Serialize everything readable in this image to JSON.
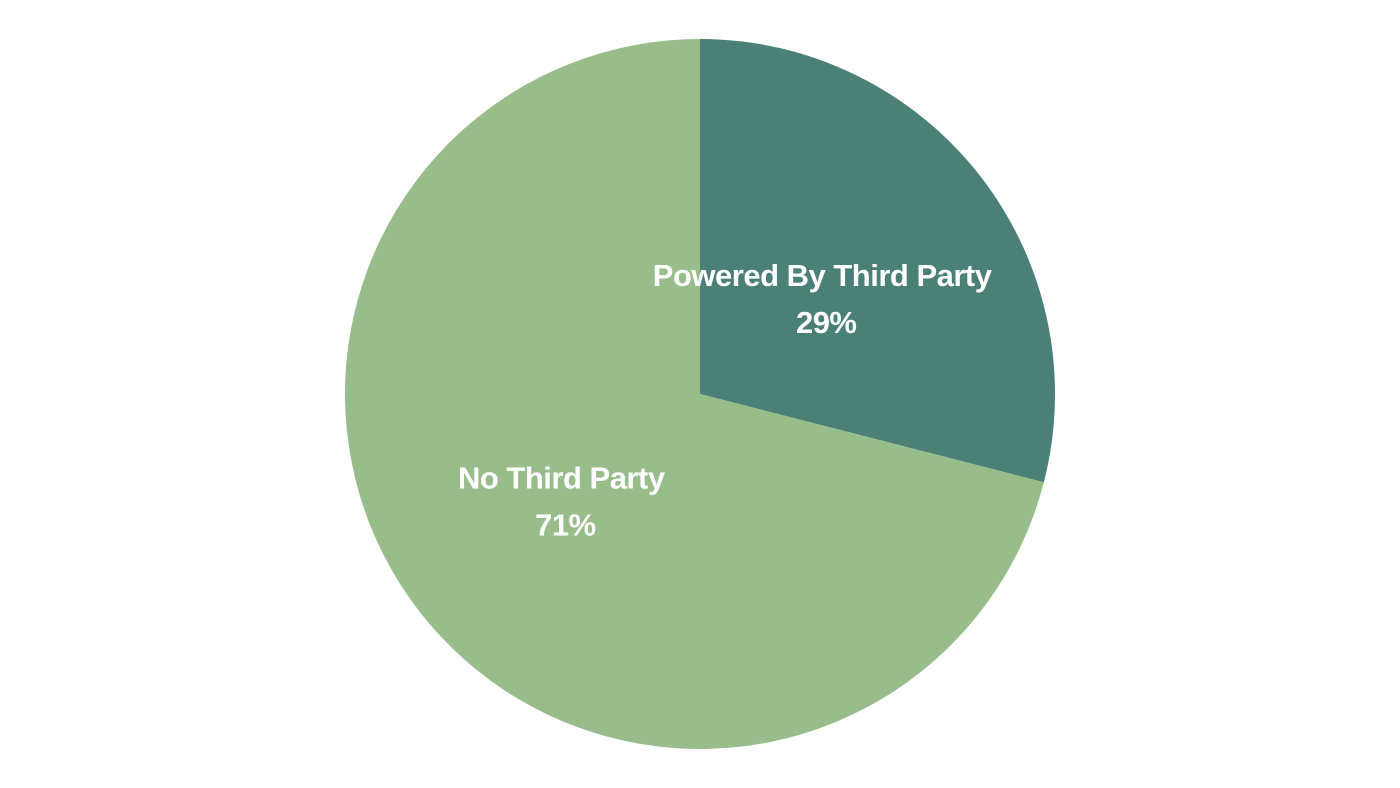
{
  "chart_data": {
    "type": "pie",
    "title": "",
    "start_angle": "12 o'clock",
    "direction": "clockwise",
    "slices": [
      {
        "label": "Powered By Third Party",
        "value": 29,
        "value_label": "29%",
        "color": "#4a8076"
      },
      {
        "label": "No Third Party",
        "value": 71,
        "value_label": "71%",
        "color": "#98bd8b"
      }
    ]
  }
}
